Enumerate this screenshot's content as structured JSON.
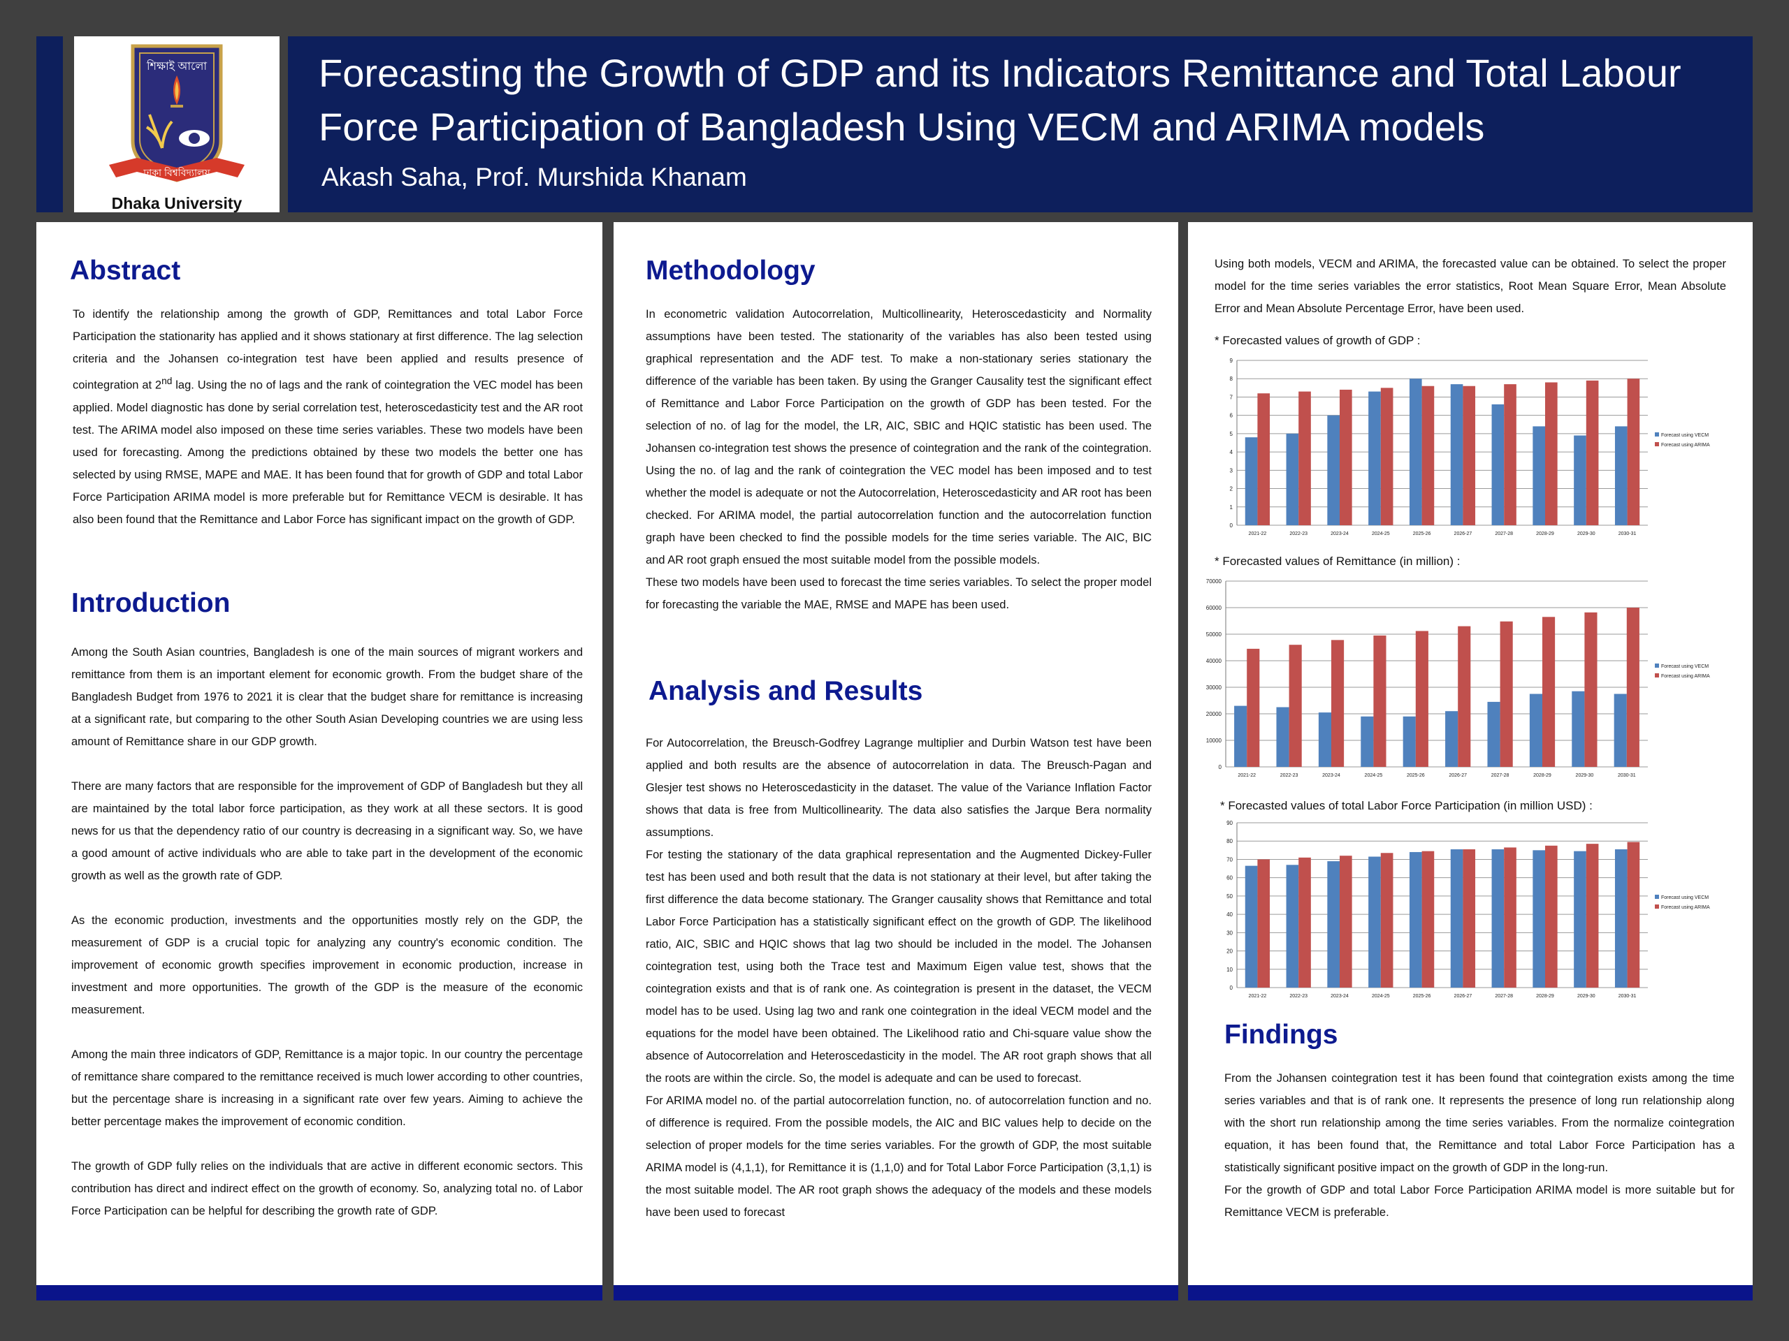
{
  "poster": {
    "title_line1": "Forecasting the Growth of GDP and its Indicators Remittance and Total Labour",
    "title_line2": "Force Participation of Bangladesh Using VECM and ARIMA models",
    "authors": "Akash Saha, Prof. Murshida Khanam",
    "logo_caption": "Dhaka University",
    "logo_top_text": "শিক্ষাই আলো",
    "logo_ribbon_text": "ঢাকা বিশ্ববিদ্যালয়"
  },
  "abstract": {
    "heading": "Abstract",
    "text_a": "To identify the relationship among the growth of GDP, Remittances and total Labor Force Participation the stationarity has applied and it shows stationary at first difference. The lag selection criteria and the Johansen co-integration test have been applied and results presence of cointegration at 2",
    "sup": "nd",
    "text_b": " lag. Using the no of lags and the rank of cointegration the VEC model has been applied. Model diagnostic has done by serial correlation test, heteroscedasticity test and the AR root test. The ARIMA model also imposed on these time series variables. These two models have been used for forecasting. Among the predictions obtained by these two models the better one has selected by using RMSE, MAPE and MAE. It has been found that for growth of GDP and total Labor Force Participation ARIMA model is more preferable but for Remittance VECM is desirable. It has also been found that the Remittance and Labor Force has significant impact on the growth of GDP."
  },
  "introduction": {
    "heading": "Introduction",
    "paragraphs": [
      "Among the South Asian countries, Bangladesh is one of the main sources of migrant workers and remittance from them is an important element for economic growth. From the budget share of the Bangladesh Budget from 1976 to 2021 it is clear that the budget share for remittance is increasing at a significant rate, but comparing to the other South Asian Developing countries we are using less amount of Remittance  share in our  GDP  growth.",
      "There are many factors that are responsible for the improvement of GDP of Bangladesh but they all are maintained by the total labor force participation, as they work at all these sectors. It is good news for us that the dependency ratio of our country is decreasing in a significant way. So, we have a good amount of active individuals who are able to take part in the development of the economic growth as well as the growth rate of GDP.",
      "As the economic production, investments and the opportunities mostly rely on the GDP, the measurement of GDP is a crucial topic for analyzing any country's economic condition. The improvement of economic growth specifies improvement in economic production, increase in investment and more opportunities. The growth of the GDP is the measure of the economic measurement.",
      "Among the main three indicators of GDP, Remittance is a major topic. In our country the percentage of remittance share compared to the remittance received is much lower according to other countries, but the percentage share is increasing in a significant rate over few years. Aiming to achieve the better percentage makes the improvement of economic condition.",
      "The growth of GDP fully relies on the individuals that are active in different economic sectors. This contribution has direct and indirect effect on the growth of economy. So, analyzing total no. of Labor Force Participation can be helpful for describing the growth rate of GDP."
    ]
  },
  "methodology": {
    "heading": "Methodology",
    "paragraphs": [
      "In econometric validation Autocorrelation, Multicollinearity, Heteroscedasticity and Normality assumptions have been tested. The stationarity of the variables has also been tested using graphical representation and the ADF test. To make a non-stationary series stationary the difference of the variable has been taken. By using the Granger Causality test the significant effect of Remittance and Labor Force Participation on the growth of GDP has been tested. For the selection of no. of lag for the model, the LR, AIC, SBIC and HQIC statistic has been used. The Johansen co-integration test shows the presence of cointegration and the rank of the cointegration. Using the no. of lag and the rank of cointegration the VEC model has been imposed and to test whether the model is adequate or not the Autocorrelation, Heteroscedasticity and AR root has been checked. For ARIMA model, the partial autocorrelation function and the autocorrelation function graph have been checked to find the possible models for the time series variable. The AIC, BIC and AR root graph ensued the most suitable model from the possible models.",
      "These two models have been used to forecast the time series variables. To select the proper model for forecasting the variable the MAE, RMSE and MAPE has been used."
    ]
  },
  "analysis": {
    "heading": "Analysis and Results",
    "paragraphs": [
      "For Autocorrelation, the Breusch-Godfrey Lagrange multiplier and Durbin Watson test have been applied and both results are the absence of autocorrelation in data. The Breusch-Pagan and Glesjer test shows no Heteroscedasticity in the dataset. The value of the Variance Inflation Factor shows that data is free from Multicollinearity. The data also satisfies the Jarque Bera normality assumptions.",
      "For testing the stationary of the data graphical representation and the Augmented Dickey-Fuller test has been used and both result that the data is not stationary at their level, but after taking the first difference the data become stationary. The Granger causality shows that Remittance and total Labor Force Participation has a statistically significant effect on the growth of GDP. The likelihood ratio, AIC, SBIC and HQIC shows that lag two should be included in the model. The Johansen cointegration test, using both the Trace test and Maximum Eigen value test, shows that the cointegration exists and that is of rank one. As cointegration is present in the dataset, the VECM model has to be used. Using lag two and rank one cointegration in the ideal VECM model and the equations for the model have been obtained. The Likelihood ratio and Chi-square value show the absence of Autocorrelation and Heteroscedasticity in the model. The AR root graph shows that all the roots are within the circle. So, the model is adequate and can be used to forecast.",
      "For ARIMA model no. of the partial autocorrelation function, no. of autocorrelation function and no. of difference is required. From the possible models, the AIC and BIC values help to decide on the selection of proper models for the time series variables. For the growth of GDP, the most suitable ARIMA model is (4,1,1), for Remittance it is (1,1,0) and for Total Labor Force Participation (3,1,1) is the most suitable model. The AR root graph shows the adequacy  of the models and  these models have been used  to forecast"
    ]
  },
  "results_intro": "Using both models, VECM and ARIMA, the forecasted value can be obtained. To select the proper model for the time series variables the error statistics, Root Mean Square Error, Mean Absolute Error and Mean Absolute Percentage Error, have been used.",
  "findings": {
    "heading": "Findings",
    "paragraphs": [
      "From the Johansen cointegration test it has been found that cointegration exists among the time series variables and that is of rank one. It represents the presence of long run relationship along with the short run relationship among the time series variables. From the normalize cointegration equation, it has been found that, the Remittance and total Labor Force Participation has a statistically significant positive impact on the growth of GDP in the long-run.",
      "For the growth of GDP and total Labor Force Participation ARIMA model is more suitable but for Remittance VECM is preferable."
    ]
  },
  "colors": {
    "vecm": "#4f81bd",
    "arima": "#c0504d",
    "accent": "#0d1f5c",
    "heading": "#0d1a8f"
  },
  "chart_data": [
    {
      "type": "bar",
      "title": "* Forecasted values of growth of GDP :",
      "categories": [
        "2021-22",
        "2022-23",
        "2023-24",
        "2024-25",
        "2025-26",
        "2026-27",
        "2027-28",
        "2028-29",
        "2029-30",
        "2030-31"
      ],
      "series": [
        {
          "name": "Forecast using VECM",
          "values": [
            4.8,
            5.0,
            6.0,
            7.3,
            8.0,
            7.7,
            6.6,
            5.4,
            4.9,
            5.4
          ]
        },
        {
          "name": "Forecast using ARIMA",
          "values": [
            7.2,
            7.3,
            7.4,
            7.5,
            7.6,
            7.6,
            7.7,
            7.8,
            7.9,
            8.0
          ]
        }
      ],
      "ylim": [
        0,
        9
      ],
      "yticks": [
        "0",
        "1",
        "2",
        "3",
        "4",
        "5",
        "6",
        "7",
        "8",
        "9"
      ],
      "ytick_values": [
        0,
        1,
        2,
        3,
        4,
        5,
        6,
        7,
        8,
        9
      ],
      "legend": "right"
    },
    {
      "type": "bar",
      "title": "* Forecasted values of Remittance (in million) :",
      "categories": [
        "2021-22",
        "2022-23",
        "2023-24",
        "2024-25",
        "2025-26",
        "2026-27",
        "2027-28",
        "2028-29",
        "2029-30",
        "2030-31"
      ],
      "series": [
        {
          "name": "Forecast using VECM",
          "values": [
            23000,
            22500,
            20500,
            19000,
            19000,
            21000,
            24500,
            27500,
            28500,
            27500
          ]
        },
        {
          "name": "Forecast using ARIMA",
          "values": [
            44500,
            46000,
            47800,
            49500,
            51200,
            53000,
            54800,
            56500,
            58200,
            60000
          ]
        }
      ],
      "ylim": [
        0,
        70000
      ],
      "yticks": [
        "0",
        "10000",
        "20000",
        "30000",
        "40000",
        "50000",
        "60000",
        "70000"
      ],
      "ytick_values": [
        0,
        10000,
        20000,
        30000,
        40000,
        50000,
        60000,
        70000
      ],
      "legend": "right"
    },
    {
      "type": "bar",
      "title": "* Forecasted values of total Labor Force Participation (in million USD) :",
      "categories": [
        "2021-22",
        "2022-23",
        "2023-24",
        "2024-25",
        "2025-26",
        "2026-27",
        "2027-28",
        "2028-29",
        "2029-30",
        "2030-31"
      ],
      "series": [
        {
          "name": "Forecast using VECM",
          "values": [
            66.5,
            67.0,
            69.0,
            71.5,
            74.0,
            75.5,
            75.5,
            75.0,
            74.5,
            75.5
          ]
        },
        {
          "name": "Forecast using ARIMA",
          "values": [
            70.0,
            71.0,
            72.0,
            73.5,
            74.5,
            75.5,
            76.5,
            77.5,
            78.5,
            79.5
          ]
        }
      ],
      "ylim": [
        0,
        90
      ],
      "yticks": [
        "0",
        "10",
        "20",
        "30",
        "40",
        "50",
        "60",
        "70",
        "80",
        "90"
      ],
      "ytick_values": [
        0,
        10,
        20,
        30,
        40,
        50,
        60,
        70,
        80,
        90
      ],
      "legend": "right"
    }
  ]
}
